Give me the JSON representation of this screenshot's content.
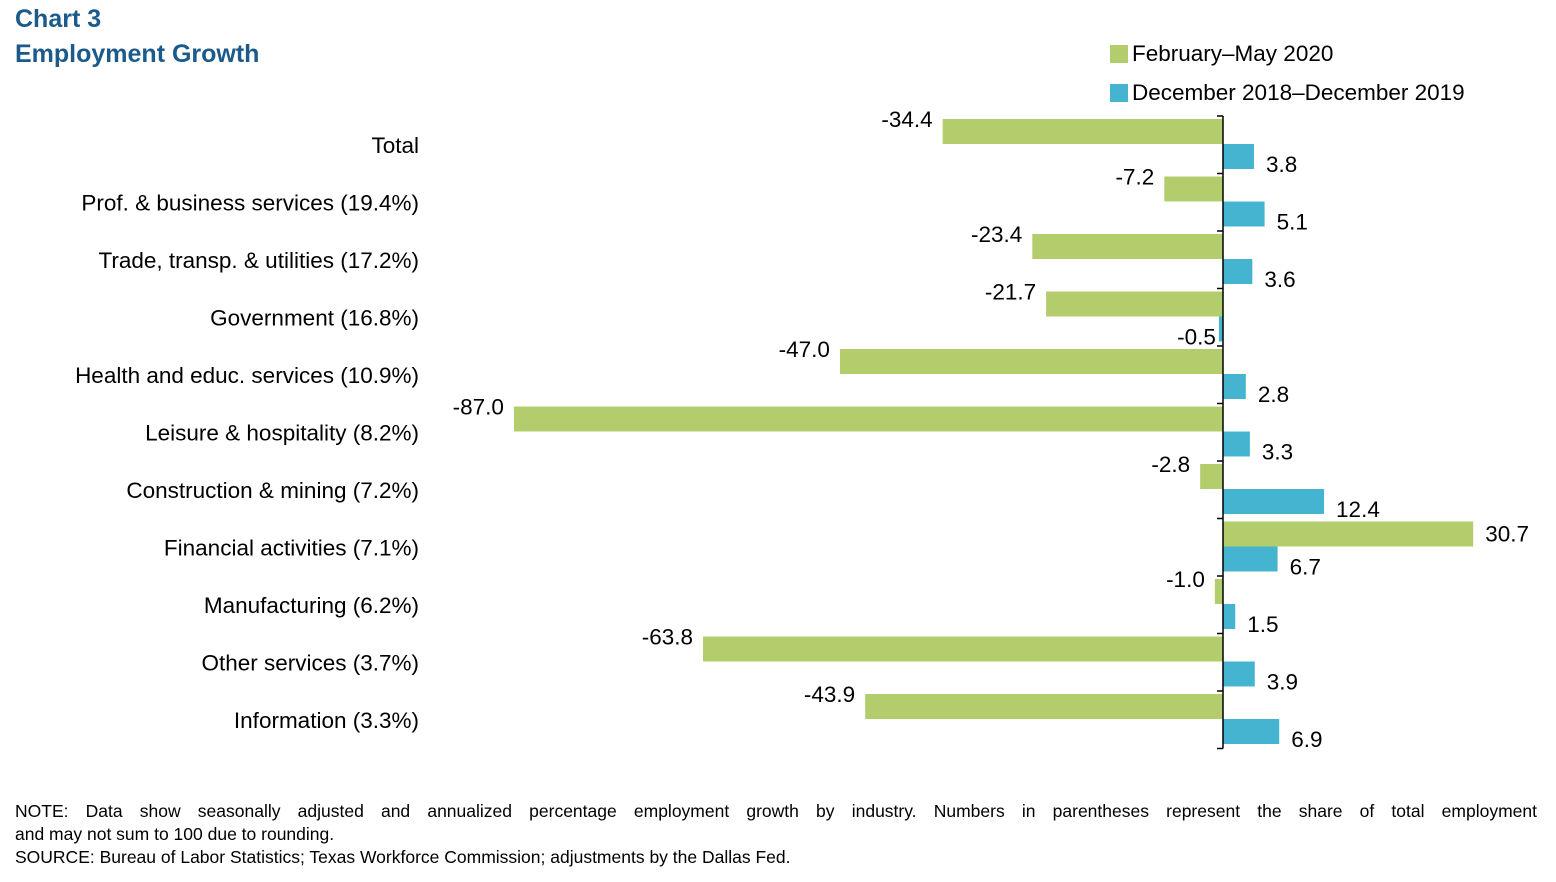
{
  "title": {
    "line1": "Chart 3",
    "line2": "Employment Growth"
  },
  "chart_data": {
    "type": "bar",
    "orientation": "horizontal",
    "categories": [
      "Total",
      "Prof. & business services (19.4%)",
      "Trade, transp. & utilities (17.2%)",
      "Government (16.8%)",
      "Health and educ. services (10.9%)",
      "Leisure & hospitality (8.2%)",
      "Construction & mining (7.2%)",
      "Financial activities (7.1%)",
      "Manufacturing (6.2%)",
      "Other services (3.7%)",
      "Information (3.3%)"
    ],
    "series": [
      {
        "name": "February–May 2020",
        "color": "#b3cc6c",
        "values": [
          -34.4,
          -7.2,
          -23.4,
          -21.7,
          -47.0,
          -87.0,
          -2.8,
          30.7,
          -1.0,
          -63.8,
          -43.9
        ],
        "labels": [
          "-34.4",
          "-7.2",
          "-23.4",
          "-21.7",
          "-47.0",
          "-87.0",
          "-2.8",
          "30.7",
          "-1.0",
          "-63.8",
          "-43.9"
        ]
      },
      {
        "name": "December 2018–December 2019",
        "color": "#44b4d1",
        "values": [
          3.8,
          5.1,
          3.6,
          -0.5,
          2.8,
          3.3,
          12.4,
          6.7,
          1.5,
          3.9,
          6.9
        ],
        "labels": [
          "3.8",
          "5.1",
          "3.6",
          "-0.5",
          "2.8",
          "3.3",
          "12.4",
          "6.7",
          "1.5",
          "3.9",
          "6.9"
        ]
      }
    ],
    "xlim": [
      -100,
      40
    ],
    "legend_position": "top-right",
    "grid": false
  },
  "notes": {
    "note_line1": "NOTE: Data show seasonally adjusted and annualized percentage employment growth by industry. Numbers in parentheses represent the share of total employment",
    "note_line2": "and may not sum to 100 due to rounding.",
    "source": "SOURCE: Bureau of Labor Statistics; Texas Workforce Commission; adjustments by the Dallas Fed."
  }
}
